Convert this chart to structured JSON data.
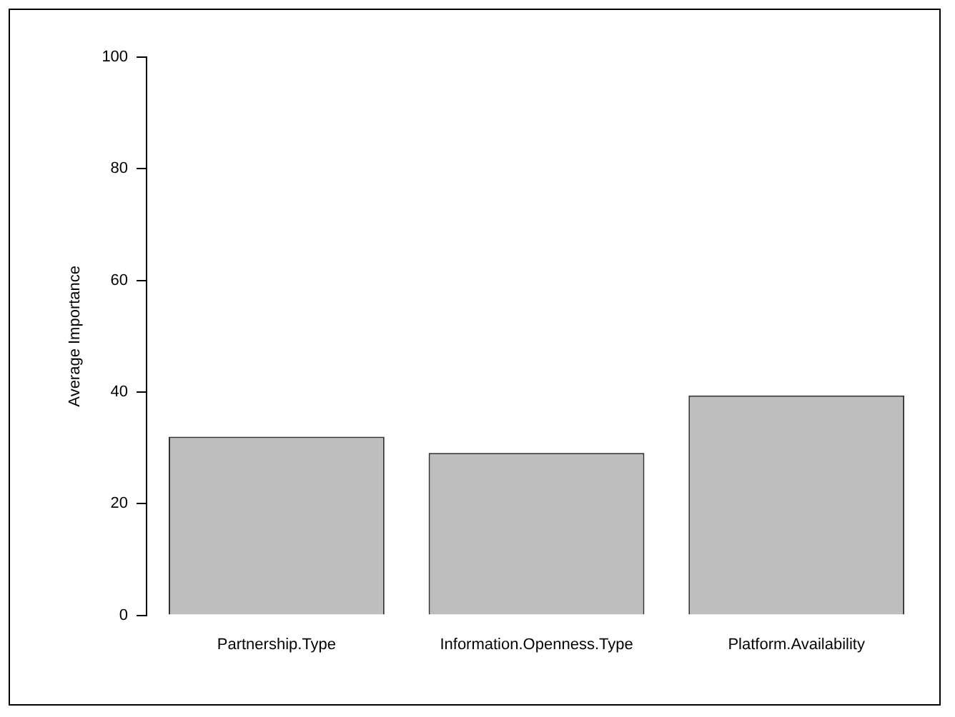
{
  "chart_data": {
    "type": "bar",
    "ylabel": "Average Importance",
    "categories": [
      "Partnership.Type",
      "Information.Openness.Type",
      "Platform.Availability"
    ],
    "values": [
      32.0,
      29.1,
      39.4
    ],
    "color": "#bebebe",
    "ylim": [
      0,
      100
    ],
    "yticks": [
      0,
      20,
      40,
      60,
      80,
      100
    ],
    "grid": false,
    "legend": false
  }
}
